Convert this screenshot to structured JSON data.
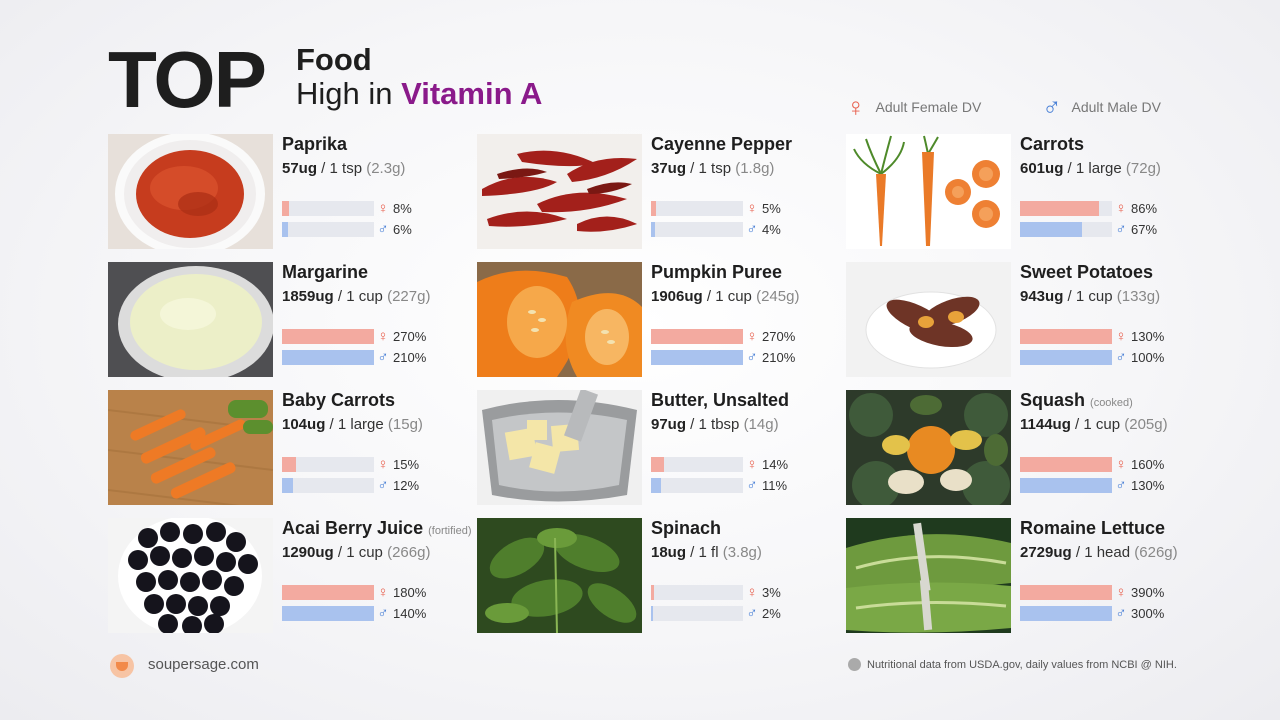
{
  "header": {
    "top": "TOP",
    "line1": "Food",
    "line2_prefix": "High in ",
    "line2_highlight": "Vitamin A",
    "highlight_color": "#8a1a8a"
  },
  "legend": {
    "female_label": "Adult Female DV",
    "male_label": "Adult Male DV",
    "female_symbol": "♀",
    "male_symbol": "♂",
    "female_color": "#e8614f",
    "male_color": "#4a80d6"
  },
  "foods": [
    {
      "name": "Paprika",
      "note": "",
      "amount": "57ug",
      "serving": " / 1 tsp ",
      "grams": "(2.3g)",
      "female_pct": 8,
      "male_pct": 6,
      "female_label": "8%",
      "male_label": "6%",
      "icon": "paprika-image"
    },
    {
      "name": "Margarine",
      "note": "",
      "amount": "1859ug",
      "serving": " / 1 cup ",
      "grams": "(227g)",
      "female_pct": 270,
      "male_pct": 210,
      "female_label": "270%",
      "male_label": "210%",
      "icon": "margarine-image"
    },
    {
      "name": "Baby Carrots",
      "note": "",
      "amount": "104ug",
      "serving": " / 1 large ",
      "grams": "(15g)",
      "female_pct": 15,
      "male_pct": 12,
      "female_label": "15%",
      "male_label": "12%",
      "icon": "baby-carrots-image"
    },
    {
      "name": "Acai Berry Juice",
      "note": "(fortified)",
      "amount": "1290ug",
      "serving": " / 1 cup ",
      "grams": "(266g)",
      "female_pct": 180,
      "male_pct": 140,
      "female_label": "180%",
      "male_label": "140%",
      "icon": "acai-berries-image"
    },
    {
      "name": "Cayenne Pepper",
      "note": "",
      "amount": "37ug",
      "serving": " / 1 tsp ",
      "grams": "(1.8g)",
      "female_pct": 5,
      "male_pct": 4,
      "female_label": "5%",
      "male_label": "4%",
      "icon": "cayenne-pepper-image"
    },
    {
      "name": "Pumpkin Puree",
      "note": "",
      "amount": "1906ug",
      "serving": " / 1 cup ",
      "grams": "(245g)",
      "female_pct": 270,
      "male_pct": 210,
      "female_label": "270%",
      "male_label": "210%",
      "icon": "pumpkin-image"
    },
    {
      "name": "Butter, Unsalted",
      "note": "",
      "amount": "97ug",
      "serving": " / 1 tbsp ",
      "grams": "(14g)",
      "female_pct": 14,
      "male_pct": 11,
      "female_label": "14%",
      "male_label": "11%",
      "icon": "butter-image"
    },
    {
      "name": "Spinach",
      "note": "",
      "amount": "18ug",
      "serving": " / 1 fl ",
      "grams": "(3.8g)",
      "female_pct": 3,
      "male_pct": 2,
      "female_label": "3%",
      "male_label": "2%",
      "icon": "spinach-image"
    },
    {
      "name": "Carrots",
      "note": "",
      "amount": "601ug",
      "serving": " / 1 large ",
      "grams": "(72g)",
      "female_pct": 86,
      "male_pct": 67,
      "female_label": "86%",
      "male_label": "67%",
      "icon": "carrots-image"
    },
    {
      "name": "Sweet Potatoes",
      "note": "",
      "amount": "943ug",
      "serving": " / 1 cup ",
      "grams": "(133g)",
      "female_pct": 130,
      "male_pct": 100,
      "female_label": "130%",
      "male_label": "100%",
      "icon": "sweet-potatoes-image"
    },
    {
      "name": "Squash",
      "note": "(cooked)",
      "amount": "1144ug",
      "serving": " / 1 cup ",
      "grams": "(205g)",
      "female_pct": 160,
      "male_pct": 130,
      "female_label": "160%",
      "male_label": "130%",
      "icon": "squash-image"
    },
    {
      "name": "Romaine Lettuce",
      "note": "",
      "amount": "2729ug",
      "serving": " / 1 head ",
      "grams": "(626g)",
      "female_pct": 390,
      "male_pct": 300,
      "female_label": "390%",
      "male_label": "300%",
      "icon": "romaine-lettuce-image"
    }
  ],
  "footer": {
    "site": "soupersage.com",
    "note": "Nutritional data from USDA.gov, daily values from NCBI @ NIH."
  }
}
